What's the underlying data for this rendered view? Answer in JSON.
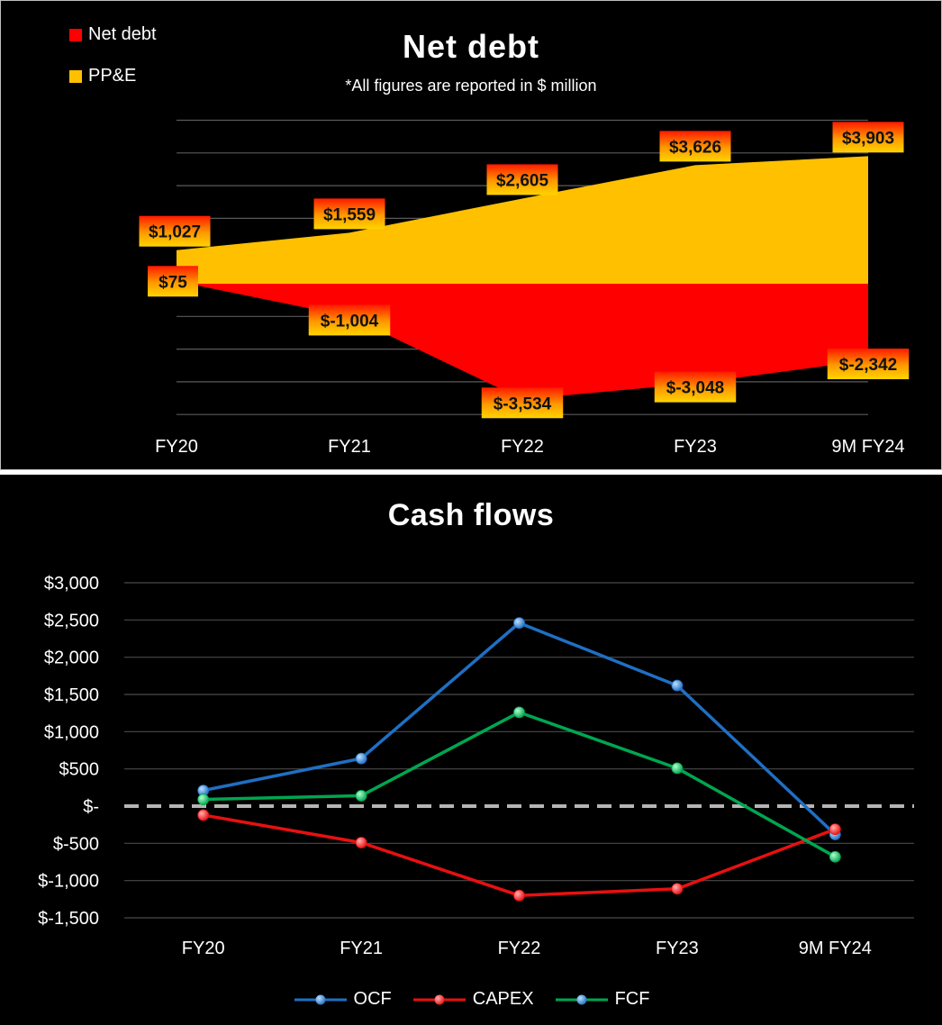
{
  "chart_data": [
    {
      "type": "area",
      "title": "Net debt",
      "subtitle": "*All figures are reported in $ million",
      "categories": [
        "FY20",
        "FY21",
        "FY22",
        "FY23",
        "9M FY24"
      ],
      "series": [
        {
          "name": "Net debt",
          "color": "#ff0000",
          "values": [
            75,
            -1004,
            -3534,
            -3048,
            -2342
          ],
          "labels": [
            "$75",
            "$-1,004",
            "$-3,534",
            "$-3,048",
            "$-2,342"
          ]
        },
        {
          "name": "PP&E",
          "color": "#ffc000",
          "values": [
            1027,
            1559,
            2605,
            3626,
            3903
          ],
          "labels": [
            "$1,027",
            "$1,559",
            "$2,605",
            "$3,626",
            "$3,903"
          ]
        }
      ],
      "ylim": [
        -4000,
        5000
      ],
      "grid": true,
      "legend": "top-left"
    },
    {
      "type": "line",
      "title": "Cash flows",
      "categories": [
        "FY20",
        "FY21",
        "FY22",
        "FY23",
        "9M FY24"
      ],
      "series": [
        {
          "name": "OCF",
          "color": "#1f6fc4",
          "values": [
            210,
            640,
            2460,
            1620,
            -380
          ]
        },
        {
          "name": "CAPEX",
          "color": "#e81010",
          "values": [
            -120,
            -490,
            -1200,
            -1110,
            -310
          ]
        },
        {
          "name": "FCF",
          "color": "#00a650",
          "values": [
            90,
            140,
            1260,
            510,
            -680
          ]
        }
      ],
      "ylim": [
        -1500,
        3000
      ],
      "yticks": [
        3000,
        2500,
        2000,
        1500,
        1000,
        500,
        0,
        -500,
        -1000,
        -1500
      ],
      "ytick_labels": [
        "$3,000",
        "$2,500",
        "$2,000",
        "$1,500",
        "$1,000",
        "$500",
        "$-",
        "$-500",
        "$-1,000",
        "$-1,500"
      ],
      "grid": true,
      "legend": "bottom"
    }
  ]
}
